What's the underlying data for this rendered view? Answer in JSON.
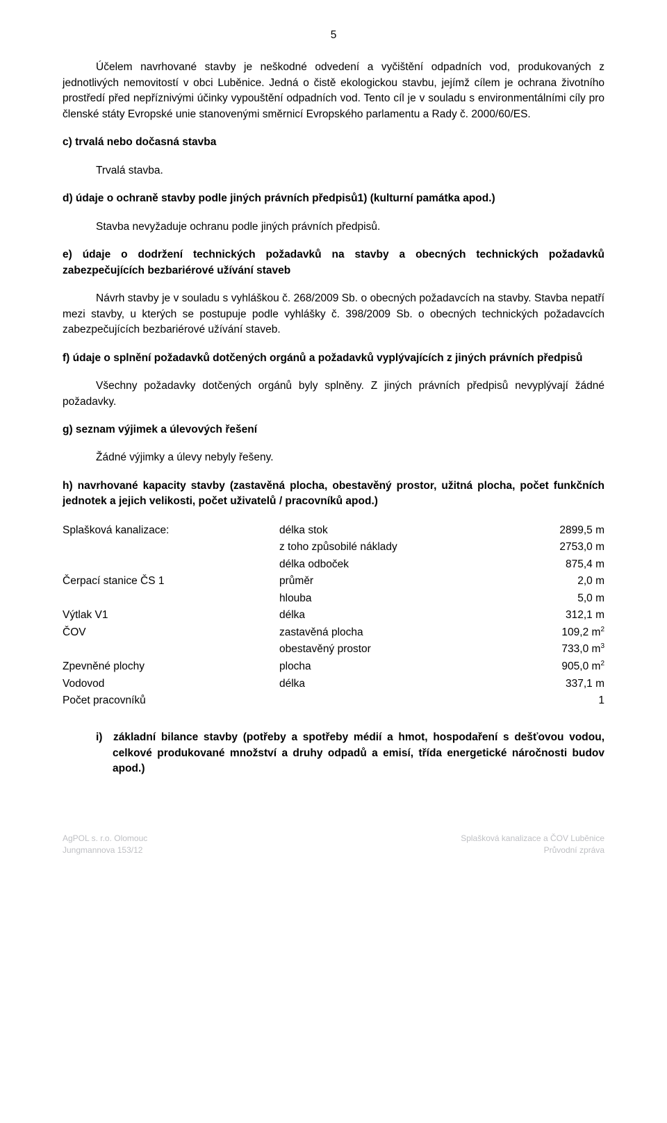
{
  "page_number": "5",
  "intro_para": "Účelem navrhované stavby je neškodné odvedení a vyčištění odpadních vod, produkovaných z jednotlivých nemovitostí v obci Luběnice. Jedná o čistě ekologickou stavbu, jejímž cílem je ochrana životního prostředí před nepříznivými účinky vypouštění odpadních vod. Tento cíl je v souladu s environmentálními cíly pro členské státy Evropské unie stanovenými směrnicí Evropského parlamentu a Rady č. 2000/60/ES.",
  "c_head": "c) trvalá nebo dočasná stavba",
  "c_answer": "Trvalá stavba.",
  "d_head": "d) údaje o ochraně stavby podle jiných právních předpisů1) (kulturní památka apod.)",
  "d_answer": "Stavba nevyžaduje ochranu podle jiných právních předpisů.",
  "e_head": "e) údaje o dodržení technických požadavků na stavby a obecných technických požadavků zabezpečujících bezbariérové užívání staveb",
  "e_answer": "Návrh stavby je v souladu s vyhláškou č. 268/2009 Sb. o obecných požadavcích na stavby. Stavba nepatří mezi stavby, u kterých se postupuje podle vyhlášky č. 398/2009 Sb. o obecných technických požadavcích zabezpečujících bezbariérové užívání staveb.",
  "f_head": "f) údaje o splnění požadavků dotčených orgánů a požadavků vyplývajících z jiných právních předpisů",
  "f_answer": "Všechny požadavky dotčených orgánů byly splněny. Z jiných právních předpisů nevyplývají žádné požadavky.",
  "g_head": "g) seznam výjimek a úlevových řešení",
  "g_answer": "Žádné výjimky a úlevy nebyly řešeny.",
  "h_head": "h) navrhované kapacity stavby (zastavěná plocha, obestavěný prostor, užitná plocha, počet funkčních jednotek a jejich velikosti, počet uživatelů / pracovníků apod.)",
  "cap": {
    "rows": [
      {
        "label": "Splašková kanalizace:",
        "param": "délka stok",
        "value": "2899,5 m"
      },
      {
        "label": "",
        "param": "z toho způsobilé náklady",
        "value": "2753,0 m"
      },
      {
        "label": "",
        "param": "délka odboček",
        "value": "875,4 m"
      },
      {
        "label": "Čerpací stanice ČS 1",
        "param": "průměr",
        "value": "2,0 m"
      },
      {
        "label": "",
        "param": "hlouba",
        "value": "5,0 m"
      },
      {
        "label": "Výtlak V1",
        "param": "délka",
        "value": "312,1 m"
      },
      {
        "label": "ČOV",
        "param": "zastavěná plocha",
        "value": "109,2 m",
        "sup": "2"
      },
      {
        "label": "",
        "param": "obestavěný prostor",
        "value": "733,0 m",
        "sup": "3"
      },
      {
        "label": "Zpevněné plochy",
        "param": "plocha",
        "value": "905,0 m",
        "sup": "2"
      },
      {
        "label": "Vodovod",
        "param": "délka",
        "value": "337,1 m"
      },
      {
        "label": "Počet pracovníků",
        "param": "",
        "value": "1"
      }
    ]
  },
  "i_head": "i) základní bilance stavby (potřeby a spotřeby médií a hmot, hospodaření s dešťovou vodou, celkové produkované množství a druhy odpadů a emisí, třída energetické náročnosti budov apod.)",
  "footer": {
    "left1": "AgPOL s. r.o. Olomouc",
    "left2": "Jungmannova 153/12",
    "right1": "Splašková kanalizace a ČOV Luběnice",
    "right2": "Průvodní zpráva"
  }
}
